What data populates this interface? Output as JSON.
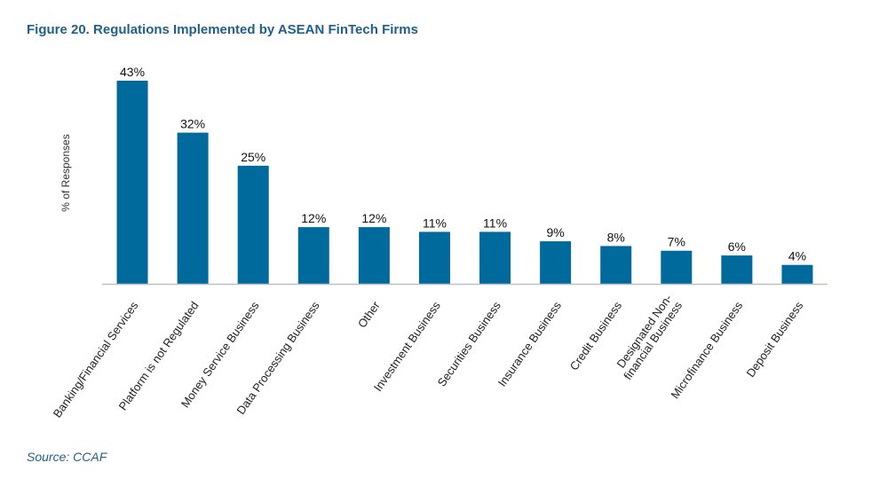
{
  "header": {
    "title": "Figure 20. Regulations Implemented by ASEAN FinTech Firms"
  },
  "footer": {
    "source": "Source: CCAF"
  },
  "colors": {
    "bar": "#006a9c",
    "title": "#1f5f8b",
    "axis": "#bfbfbf"
  },
  "chart_data": {
    "type": "bar",
    "title": "",
    "xlabel": "",
    "ylabel": "% of Responses",
    "ylim": [
      0,
      43
    ],
    "grid": false,
    "legend": "none",
    "categories": [
      "Banking/Financial Services",
      "Platform is not Regulated",
      "Money Service Business",
      "Data Processing Business",
      "Other",
      "Investment Business",
      "Securities Business",
      "Insurance Business",
      "Credit Business",
      [
        "Designated Non-",
        "financial Business"
      ],
      "Microfinance Business",
      "Deposit Business"
    ],
    "values": [
      43,
      32,
      25,
      12,
      12,
      11,
      11,
      9,
      8,
      7,
      6,
      4
    ],
    "value_labels": [
      "43%",
      "32%",
      "25%",
      "12%",
      "12%",
      "11%",
      "11%",
      "9%",
      "8%",
      "7%",
      "6%",
      "4%"
    ]
  }
}
